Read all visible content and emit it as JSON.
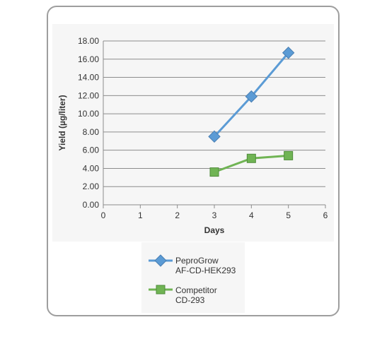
{
  "chart_data": {
    "type": "line",
    "xlabel": "Days",
    "ylabel": "Yield (µg/liter)",
    "xlim": [
      0,
      6
    ],
    "ylim": [
      0,
      18
    ],
    "x_ticks": [
      "0",
      "1",
      "2",
      "3",
      "4",
      "5",
      "6"
    ],
    "y_ticks": [
      "0.00",
      "2.00",
      "4.00",
      "6.00",
      "8.00",
      "10.00",
      "12.00",
      "14.00",
      "16.00",
      "18.00"
    ],
    "grid": true,
    "legend_position": "bottom",
    "series": [
      {
        "name": "PeproGrow AF-CD-HEK293",
        "label_lines": [
          "PeproGrow",
          "AF-CD-HEK293"
        ],
        "color": "#5b9bd5",
        "marker": "diamond",
        "x": [
          3,
          4,
          5
        ],
        "values": [
          7.5,
          11.9,
          16.7
        ]
      },
      {
        "name": "Competitor CD-293",
        "label_lines": [
          "Competitor",
          "CD-293"
        ],
        "color": "#70b454",
        "marker": "square",
        "x": [
          3,
          4,
          5
        ],
        "values": [
          3.6,
          5.1,
          5.4
        ]
      }
    ]
  }
}
